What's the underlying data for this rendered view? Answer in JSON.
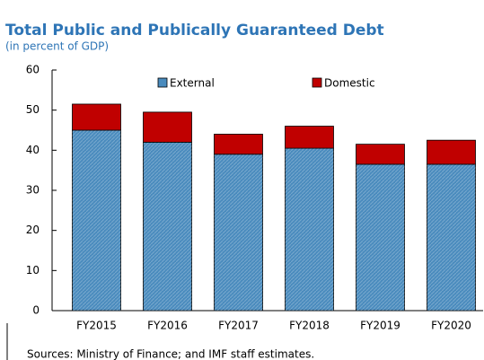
{
  "chart_data": {
    "type": "stacked_bar",
    "title": "Total Public and Publically Guaranteed Debt",
    "subtitle": "(in percent of GDP)",
    "categories": [
      "FY2015",
      "FY2016",
      "FY2017",
      "FY2018",
      "FY2019",
      "FY2020"
    ],
    "series": [
      {
        "name": "External",
        "color": "#4a8bbd",
        "values": [
          45,
          42,
          39,
          40.5,
          36.5,
          36.5
        ]
      },
      {
        "name": "Domestic",
        "color": "#c00000",
        "values": [
          6.5,
          7.5,
          5,
          5.5,
          5,
          6
        ]
      }
    ],
    "ylim": [
      0,
      60
    ],
    "yticks": [
      0,
      10,
      20,
      30,
      40,
      50,
      60
    ],
    "grid": false,
    "legend": "top",
    "source": "Sources: Ministry of Finance; and IMF staff estimates."
  }
}
